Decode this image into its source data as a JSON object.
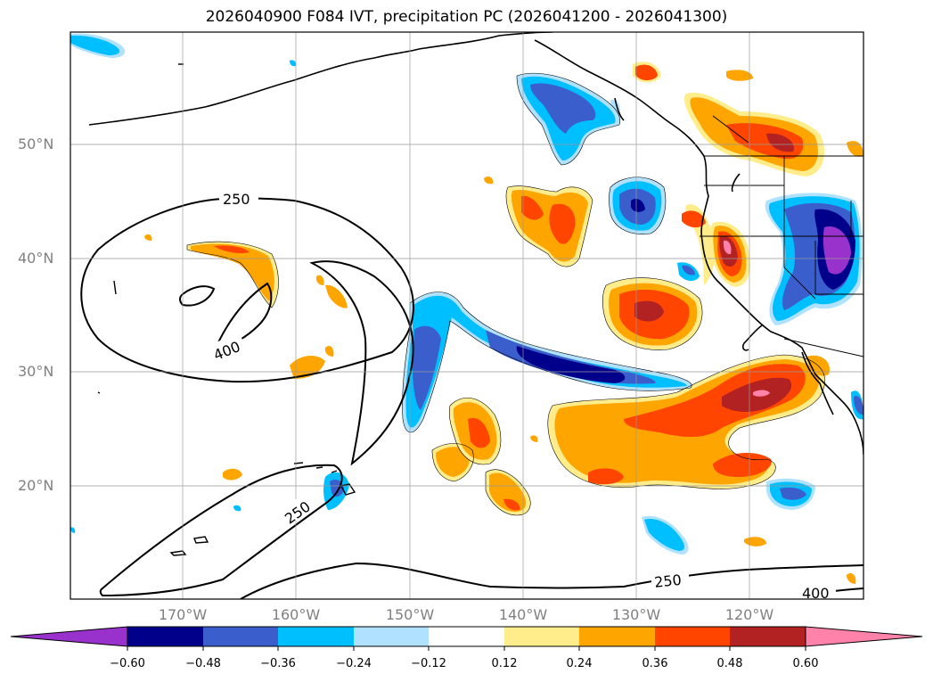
{
  "title": "2026040900 F084 IVT, precipitation PC (2026041200 - 2026041300)",
  "lat_labels": [
    "50°N",
    "40°N",
    "30°N",
    "20°N"
  ],
  "lon_labels": [
    "170°W",
    "160°W",
    "150°W",
    "140°W",
    "130°W",
    "120°W"
  ],
  "contour_labels": {
    "c250_a": "250",
    "c400_a": "400",
    "c250_b": "250",
    "c250_c": "250",
    "c400_b": "400"
  },
  "colorbar": {
    "ticks": [
      "−0.60",
      "−0.48",
      "−0.36",
      "−0.24",
      "−0.12",
      "0.12",
      "0.24",
      "0.36",
      "0.48",
      "0.60"
    ],
    "colors": [
      "#9932cc",
      "#00008b",
      "#3a5fcd",
      "#00bfff",
      "#b0e2ff",
      "#ffffff",
      "#ffec8b",
      "#ffa500",
      "#ff4500",
      "#b22222",
      "#ff82ab"
    ]
  }
}
